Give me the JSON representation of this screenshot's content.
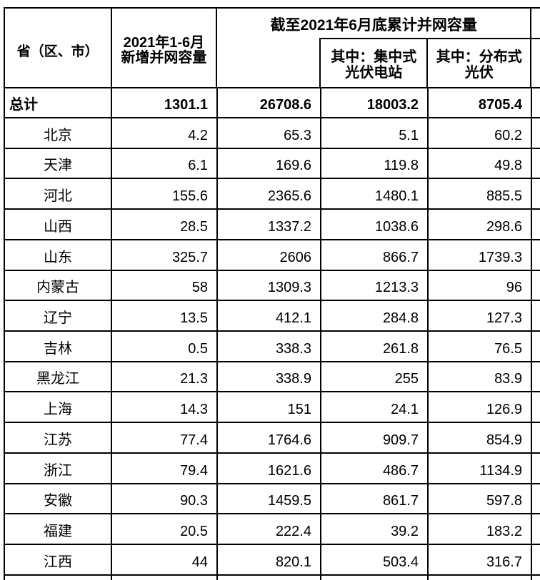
{
  "chart_data": {
    "type": "table",
    "span_header": "截至2021年6月底累计并网容量",
    "header": {
      "province": "省（区、市）",
      "new_capacity_line1": "2021年1-6月",
      "new_capacity_line2": "新增并网容量",
      "centralized_line1": "其中：集中式",
      "centralized_line2": "光伏电站",
      "distributed_line1": "其中：分布式",
      "distributed_line2": "光伏"
    },
    "columns": [
      "省（区、市）",
      "2021年1-6月新增并网容量",
      "截至2021年6月底累计并网容量",
      "其中：集中式光伏电站",
      "其中：分布式光伏"
    ],
    "total": {
      "name": "总计",
      "values": [
        "1301.1",
        "26708.6",
        "18003.2",
        "8705.4"
      ]
    },
    "rows": [
      {
        "name": "北京",
        "values": [
          "4.2",
          "65.3",
          "5.1",
          "60.2"
        ]
      },
      {
        "name": "天津",
        "values": [
          "6.1",
          "169.6",
          "119.8",
          "49.8"
        ]
      },
      {
        "name": "河北",
        "values": [
          "155.6",
          "2365.6",
          "1480.1",
          "885.5"
        ]
      },
      {
        "name": "山西",
        "values": [
          "28.5",
          "1337.2",
          "1038.6",
          "298.6"
        ]
      },
      {
        "name": "山东",
        "values": [
          "325.7",
          "2606",
          "866.7",
          "1739.3"
        ]
      },
      {
        "name": "内蒙古",
        "values": [
          "58",
          "1309.3",
          "1213.3",
          "96"
        ]
      },
      {
        "name": "辽宁",
        "values": [
          "13.5",
          "412.1",
          "284.8",
          "127.3"
        ]
      },
      {
        "name": "吉林",
        "values": [
          "0.5",
          "338.3",
          "261.8",
          "76.5"
        ]
      },
      {
        "name": "黑龙江",
        "values": [
          "21.3",
          "338.9",
          "255",
          "83.9"
        ]
      },
      {
        "name": "上海",
        "values": [
          "14.3",
          "151",
          "24.1",
          "126.9"
        ]
      },
      {
        "name": "江苏",
        "values": [
          "77.4",
          "1764.6",
          "909.7",
          "854.9"
        ]
      },
      {
        "name": "浙江",
        "values": [
          "79.4",
          "1621.6",
          "486.7",
          "1134.9"
        ]
      },
      {
        "name": "安徽",
        "values": [
          "90.3",
          "1459.5",
          "861.7",
          "597.8"
        ]
      },
      {
        "name": "福建",
        "values": [
          "20.5",
          "222.4",
          "39.2",
          "183.2"
        ]
      },
      {
        "name": "江西",
        "values": [
          "44",
          "820.1",
          "503.4",
          "316.7"
        ]
      }
    ]
  },
  "colors": {
    "border": "#000000",
    "text": "#000000",
    "background": "#ffffff"
  }
}
